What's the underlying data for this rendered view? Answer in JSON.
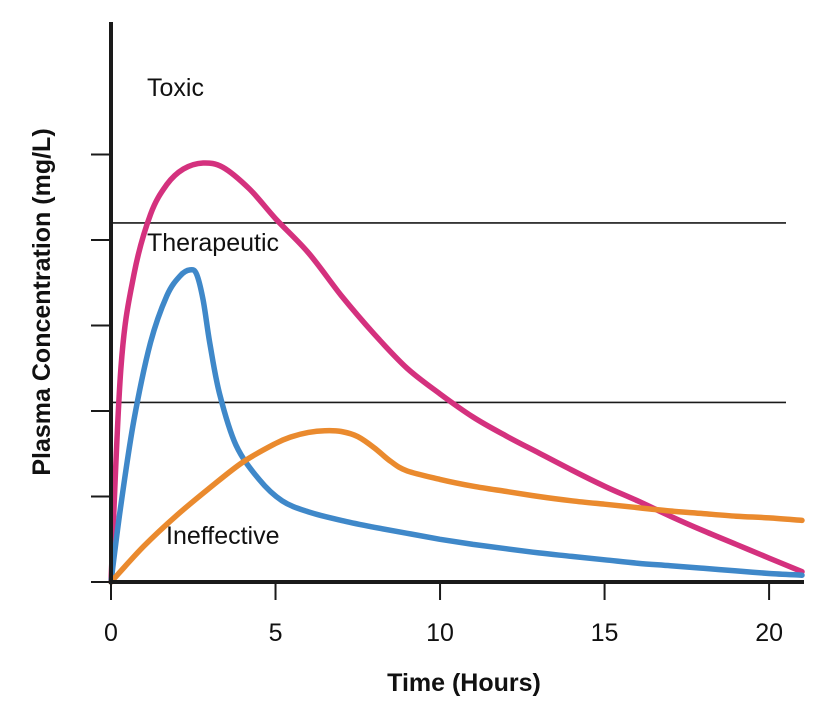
{
  "chart_data": {
    "type": "line",
    "xlabel": "Time (Hours)",
    "ylabel": "Plasma Concentration (mg/L)",
    "xlim": [
      0,
      21
    ],
    "ylim": [
      0,
      6
    ],
    "x_ticks": [
      0,
      5,
      10,
      15,
      20
    ],
    "y_ticks": [
      0,
      1,
      2,
      3,
      4,
      5
    ],
    "y_tick_labels_shown": false,
    "grid": false,
    "threshold_lines": [
      2.1,
      4.2
    ],
    "region_labels": [
      "Toxic",
      "Therapeutic",
      "Ineffective"
    ],
    "series": [
      {
        "color": "#d4317e",
        "x": [
          0,
          0.3,
          0.7,
          1.2,
          1.7,
          2.2,
          2.8,
          3.4,
          4.2,
          5,
          6,
          7,
          8,
          9,
          10,
          11,
          12,
          13,
          14,
          15,
          16,
          17,
          18,
          19,
          20,
          21
        ],
        "y": [
          0,
          2.5,
          3.6,
          4.3,
          4.65,
          4.83,
          4.9,
          4.85,
          4.6,
          4.25,
          3.85,
          3.35,
          2.9,
          2.5,
          2.2,
          1.93,
          1.71,
          1.51,
          1.31,
          1.12,
          0.95,
          0.77,
          0.6,
          0.44,
          0.28,
          0.12
        ]
      },
      {
        "color": "#3f88c9",
        "x": [
          0,
          0.3,
          0.7,
          1.2,
          1.7,
          2.1,
          2.4,
          2.6,
          2.8,
          3.0,
          3.3,
          3.8,
          4.5,
          5.2,
          6,
          7,
          8,
          9,
          10,
          11,
          12,
          13,
          14,
          15,
          16,
          17,
          18,
          19,
          20,
          21
        ],
        "y": [
          0,
          0.9,
          1.9,
          2.8,
          3.35,
          3.58,
          3.65,
          3.6,
          3.3,
          2.8,
          2.2,
          1.6,
          1.2,
          0.95,
          0.82,
          0.72,
          0.64,
          0.57,
          0.5,
          0.44,
          0.39,
          0.34,
          0.3,
          0.26,
          0.22,
          0.19,
          0.16,
          0.13,
          0.1,
          0.08
        ]
      },
      {
        "color": "#ea8a2e",
        "x": [
          0,
          1,
          2,
          3,
          4,
          5,
          5.5,
          6,
          6.5,
          7,
          7.5,
          8,
          8.5,
          9,
          10,
          11,
          12,
          13,
          14,
          15,
          16,
          17,
          18,
          19,
          20,
          21
        ],
        "y": [
          0,
          0.42,
          0.78,
          1.1,
          1.4,
          1.62,
          1.7,
          1.75,
          1.77,
          1.76,
          1.7,
          1.57,
          1.41,
          1.3,
          1.2,
          1.12,
          1.06,
          1.0,
          0.95,
          0.91,
          0.87,
          0.83,
          0.8,
          0.77,
          0.75,
          0.72
        ]
      }
    ]
  }
}
